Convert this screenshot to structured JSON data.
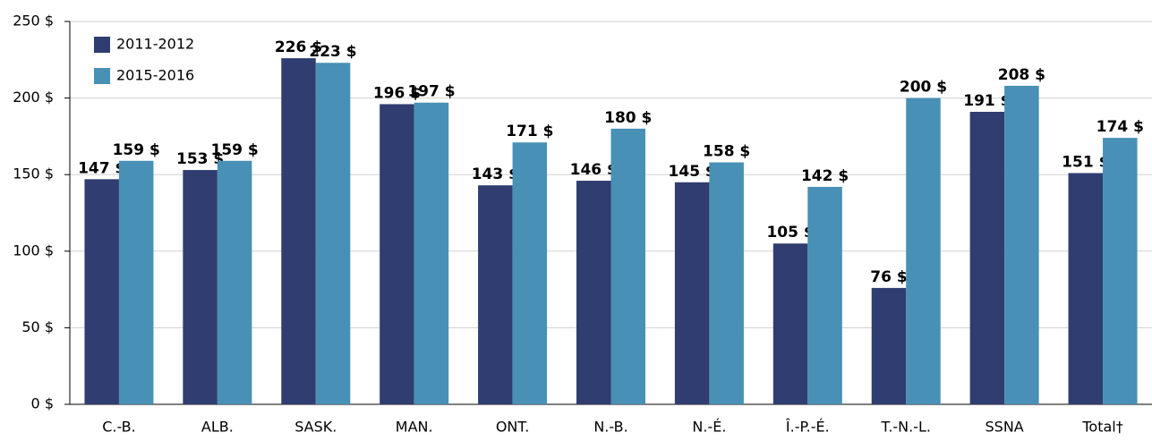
{
  "chart_data": {
    "type": "bar",
    "categories": [
      "C.-B.",
      "ALB.",
      "SASK.",
      "MAN.",
      "ONT.",
      "N.-B.",
      "N.-É.",
      "Î.-P.-É.",
      "T.-N.-L.",
      "SSNA",
      "Total†"
    ],
    "series": [
      {
        "name": "2011-2012",
        "color": "#303d70",
        "values": [
          147,
          153,
          226,
          196,
          143,
          146,
          145,
          105,
          76,
          191,
          151
        ],
        "value_labels": [
          "147 $",
          "153 $",
          "226 $",
          "196 $",
          "143 $",
          "146 $",
          "145 $",
          "105 $",
          "76 $",
          "191 $",
          "151 $"
        ]
      },
      {
        "name": "2015-2016",
        "color": "#4890b5",
        "values": [
          159,
          159,
          223,
          197,
          171,
          180,
          158,
          142,
          200,
          208,
          174
        ],
        "value_labels": [
          "159 $",
          "159 $",
          "223 $",
          "197 $",
          "171 $",
          "180 $",
          "158 $",
          "142 $",
          "200 $",
          "208 $",
          "174 $"
        ]
      }
    ],
    "ylim": [
      0,
      250
    ],
    "yticks": [
      {
        "value": 0,
        "label": "0 $"
      },
      {
        "value": 50,
        "label": "50 $"
      },
      {
        "value": 100,
        "label": "100 $"
      },
      {
        "value": 150,
        "label": "150 $"
      },
      {
        "value": 200,
        "label": "200 $"
      },
      {
        "value": 250,
        "label": "250 $"
      }
    ],
    "grid": true,
    "legend": "top-left"
  }
}
